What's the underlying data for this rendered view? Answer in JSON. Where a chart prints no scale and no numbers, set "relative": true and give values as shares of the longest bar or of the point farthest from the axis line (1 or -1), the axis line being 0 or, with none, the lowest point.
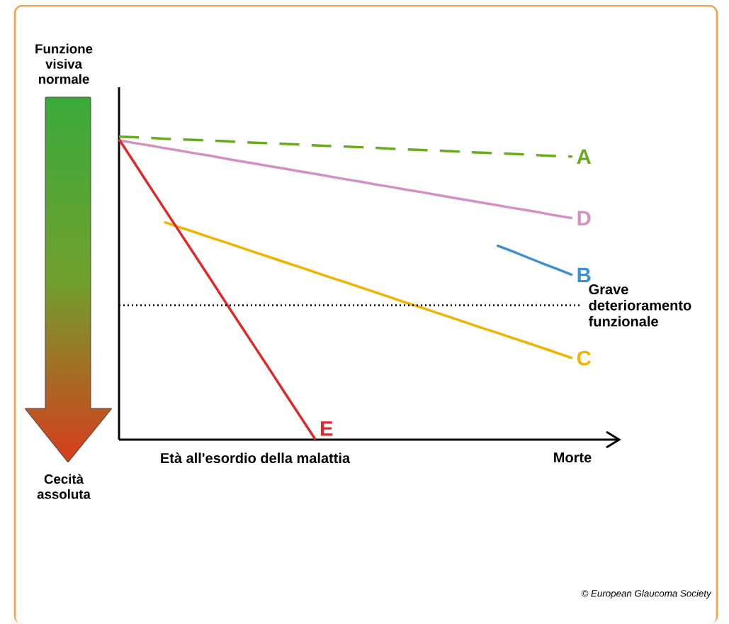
{
  "chart_data": {
    "type": "line",
    "relative": true,
    "legend": false,
    "marker": "none",
    "categories": [
      null,
      null,
      null,
      null,
      null,
      null,
      null,
      null,
      null,
      "Età all'esordio della malattia",
      null,
      null,
      null,
      null,
      null,
      null,
      null,
      null,
      null,
      null,
      null,
      null,
      null,
      null,
      null,
      null,
      null,
      null,
      null,
      null,
      "Morte"
    ],
    "series": [
      {
        "name": "A",
        "color": "#6aaa1e",
        "line_style": "dashed",
        "values": [
          1,
          0.998,
          0.996,
          0.993,
          0.991,
          0.989,
          0.987,
          0.985,
          0.982,
          0.98,
          0.978,
          0.976,
          0.974,
          0.971,
          0.969,
          0.967,
          0.965,
          0.963,
          0.96,
          0.958,
          0.956,
          0.954,
          0.952,
          0.949,
          0.947,
          0.945,
          0.943,
          0.941,
          0.938,
          0.936,
          0.934
        ]
      },
      {
        "name": "D",
        "color": "#d48fc4",
        "values": [
          0.988,
          0.979,
          0.971,
          0.962,
          0.954,
          0.945,
          0.937,
          0.928,
          0.919,
          0.911,
          0.902,
          0.894,
          0.885,
          0.877,
          0.868,
          0.859,
          0.851,
          0.842,
          0.834,
          0.825,
          0.817,
          0.808,
          0.799,
          0.791,
          0.782,
          0.774,
          0.765,
          0.757,
          0.748,
          0.739,
          0.731
        ]
      },
      {
        "name": "B",
        "color": "#3d8fd0",
        "values": [
          null,
          null,
          null,
          null,
          null,
          null,
          null,
          null,
          null,
          null,
          null,
          null,
          null,
          null,
          null,
          null,
          null,
          null,
          null,
          null,
          null,
          null,
          null,
          null,
          null,
          0.641,
          0.622,
          0.602,
          0.582,
          0.563,
          0.543
        ]
      },
      {
        "name": "C",
        "color": "#f0b400",
        "values": [
          null,
          null,
          null,
          0.718,
          0.701,
          0.685,
          0.668,
          0.652,
          0.635,
          0.618,
          0.602,
          0.585,
          0.569,
          0.552,
          0.535,
          0.519,
          0.502,
          0.486,
          0.469,
          0.452,
          0.436,
          0.419,
          0.403,
          0.386,
          0.369,
          0.353,
          0.336,
          0.32,
          0.303,
          0.286,
          0.269
        ]
      },
      {
        "name": "E",
        "color": "#e02828",
        "values": [
          0.991,
          0.915,
          0.838,
          0.762,
          0.686,
          0.61,
          0.534,
          0.457,
          0.381,
          0.305,
          0.229,
          0.152,
          0.076,
          0,
          null,
          null,
          null,
          null,
          null,
          null,
          null,
          null,
          null,
          null,
          null,
          null,
          null,
          null,
          null,
          null,
          null
        ]
      }
    ],
    "ref_lines": [
      {
        "axis": "y",
        "value": 0.443,
        "label": "Grave deterioramento funzionale",
        "line_style": "dotted",
        "color": "#000000"
      }
    ],
    "annotations": [
      "Funzione visiva normale",
      "Cecità assoluta",
      "© European Glaucoma Society"
    ]
  }
}
